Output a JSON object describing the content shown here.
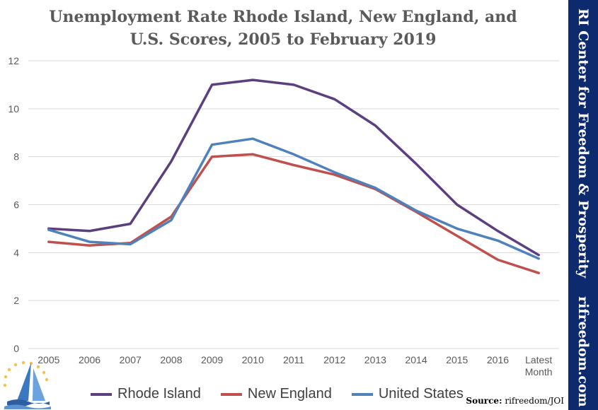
{
  "title_line1": "Unemployment Rate Rhode Island, New England, and",
  "title_line2": "U.S. Scores, 2005 to February 2019",
  "sidebar": {
    "org": "RI Center for Freedom & Prosperity",
    "site": "rifreedom.com"
  },
  "source": {
    "label": "Source:",
    "text": "rifreedom/JOI"
  },
  "colors": {
    "sidebar_bg": "#0d2a6e",
    "rhode_island": "#5b3f7f",
    "new_england": "#c0504d",
    "united_states": "#4f81bd",
    "grid": "#d9d9d9"
  },
  "chart_data": {
    "type": "line",
    "categories": [
      "2005",
      "2006",
      "2007",
      "2008",
      "2009",
      "2010",
      "2011",
      "2012",
      "2013",
      "2014",
      "2015",
      "2016",
      "Latest Month"
    ],
    "ylim": [
      0,
      12
    ],
    "yticks": [
      0,
      2,
      4,
      6,
      8,
      10,
      12
    ],
    "grid": true,
    "legend_position": "bottom",
    "series": [
      {
        "name": "Rhode Island",
        "color": "#5b3f7f",
        "values": [
          5.0,
          4.9,
          5.2,
          7.8,
          11.0,
          11.2,
          11.0,
          10.4,
          9.3,
          7.7,
          6.0,
          4.9,
          3.9
        ]
      },
      {
        "name": "New England",
        "color": "#c0504d",
        "values": [
          4.45,
          4.3,
          4.4,
          5.5,
          8.0,
          8.1,
          7.65,
          7.25,
          6.65,
          5.7,
          4.7,
          3.7,
          3.15
        ]
      },
      {
        "name": "United States",
        "color": "#4f81bd",
        "values": [
          4.95,
          4.45,
          4.35,
          5.35,
          8.5,
          8.75,
          8.1,
          7.35,
          6.7,
          5.75,
          5.0,
          4.5,
          3.75
        ]
      }
    ]
  }
}
